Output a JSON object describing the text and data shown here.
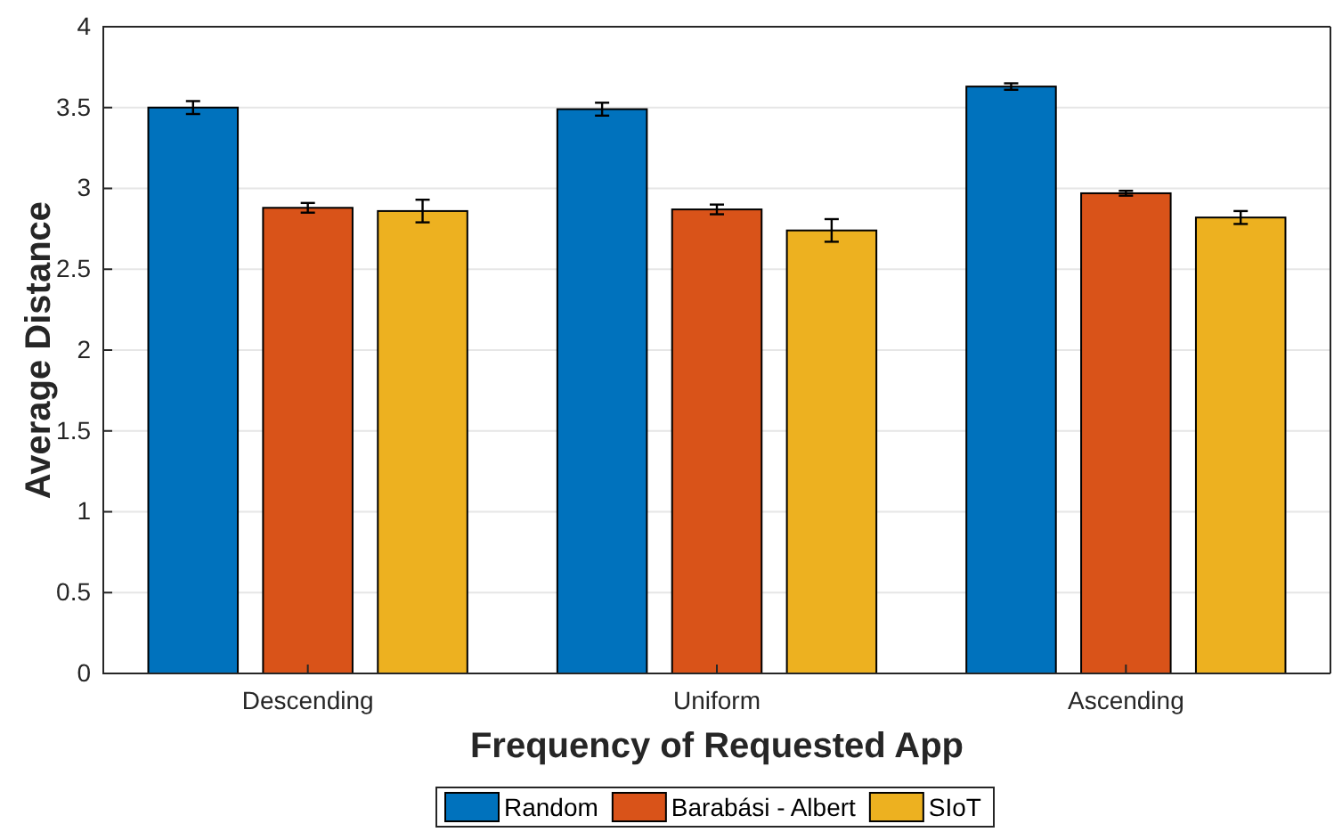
{
  "chart_data": {
    "type": "bar",
    "xlabel": "Frequency of Requested App",
    "ylabel": "Average Distance",
    "categories": [
      "Descending",
      "Uniform",
      "Ascending"
    ],
    "series": [
      {
        "name": "Random",
        "color": "#0072bd",
        "values": [
          3.5,
          3.49,
          3.63
        ],
        "errors": [
          0.04,
          0.04,
          0.02
        ]
      },
      {
        "name": "Barabási - Albert",
        "color": "#d95319",
        "values": [
          2.88,
          2.87,
          2.97
        ],
        "errors": [
          0.03,
          0.03,
          0.015
        ]
      },
      {
        "name": "SIoT",
        "color": "#edb120",
        "values": [
          2.86,
          2.74,
          2.82
        ],
        "errors": [
          0.07,
          0.07,
          0.04
        ]
      }
    ],
    "ylim": [
      0,
      4
    ],
    "yticks": [
      0,
      0.5,
      1,
      1.5,
      2,
      2.5,
      3,
      3.5,
      4
    ],
    "grid": "y",
    "legend": "bottom"
  }
}
